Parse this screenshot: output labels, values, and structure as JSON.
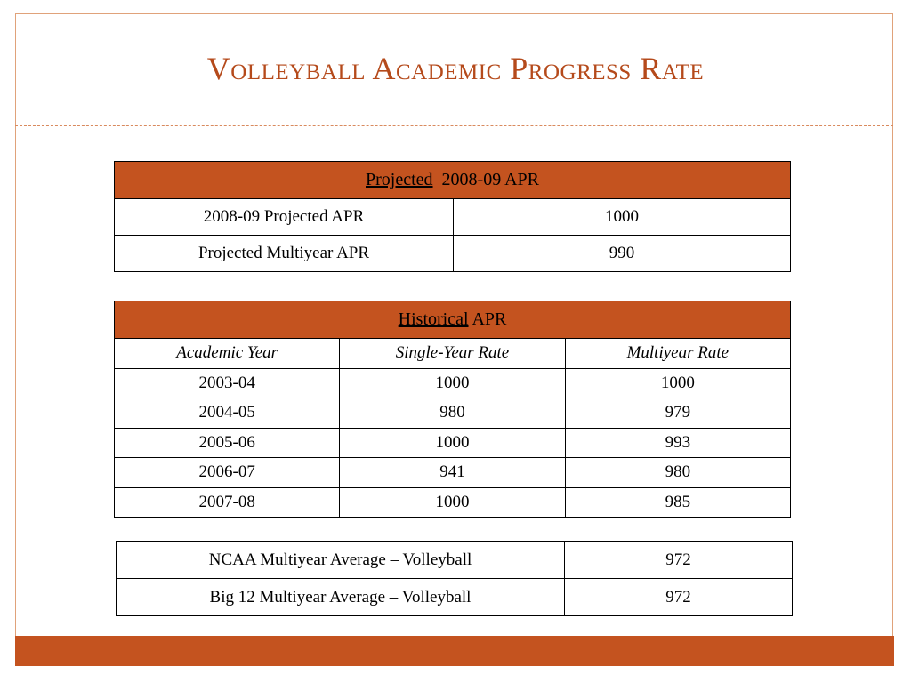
{
  "slide": {
    "title": "Volleyball Academic Progress Rate"
  },
  "projected": {
    "header_underlined": "Projected",
    "header_rest": "2008-09 APR",
    "rows": [
      {
        "label": "2008-09 Projected APR",
        "value": "1000"
      },
      {
        "label": "Projected Multiyear APR",
        "value": "990"
      }
    ]
  },
  "historical": {
    "header_underlined": "Historical",
    "header_rest": "APR",
    "columns": [
      "Academic Year",
      "Single-Year Rate",
      "Multiyear Rate"
    ],
    "rows": [
      {
        "year": "2003-04",
        "single": "1000",
        "multi": "1000"
      },
      {
        "year": "2004-05",
        "single": "980",
        "multi": "979"
      },
      {
        "year": "2005-06",
        "single": "1000",
        "multi": "993"
      },
      {
        "year": "2006-07",
        "single": "941",
        "multi": "980"
      },
      {
        "year": "2007-08",
        "single": "1000",
        "multi": "985"
      }
    ]
  },
  "averages": {
    "rows": [
      {
        "label": "NCAA Multiyear Average – Volleyball",
        "value": "972"
      },
      {
        "label": "Big 12 Multiyear Average – Volleyball",
        "value": "972"
      }
    ]
  },
  "colors": {
    "accent": "#c4531f",
    "title": "#b54a1b",
    "frame": "#e0a27a"
  }
}
